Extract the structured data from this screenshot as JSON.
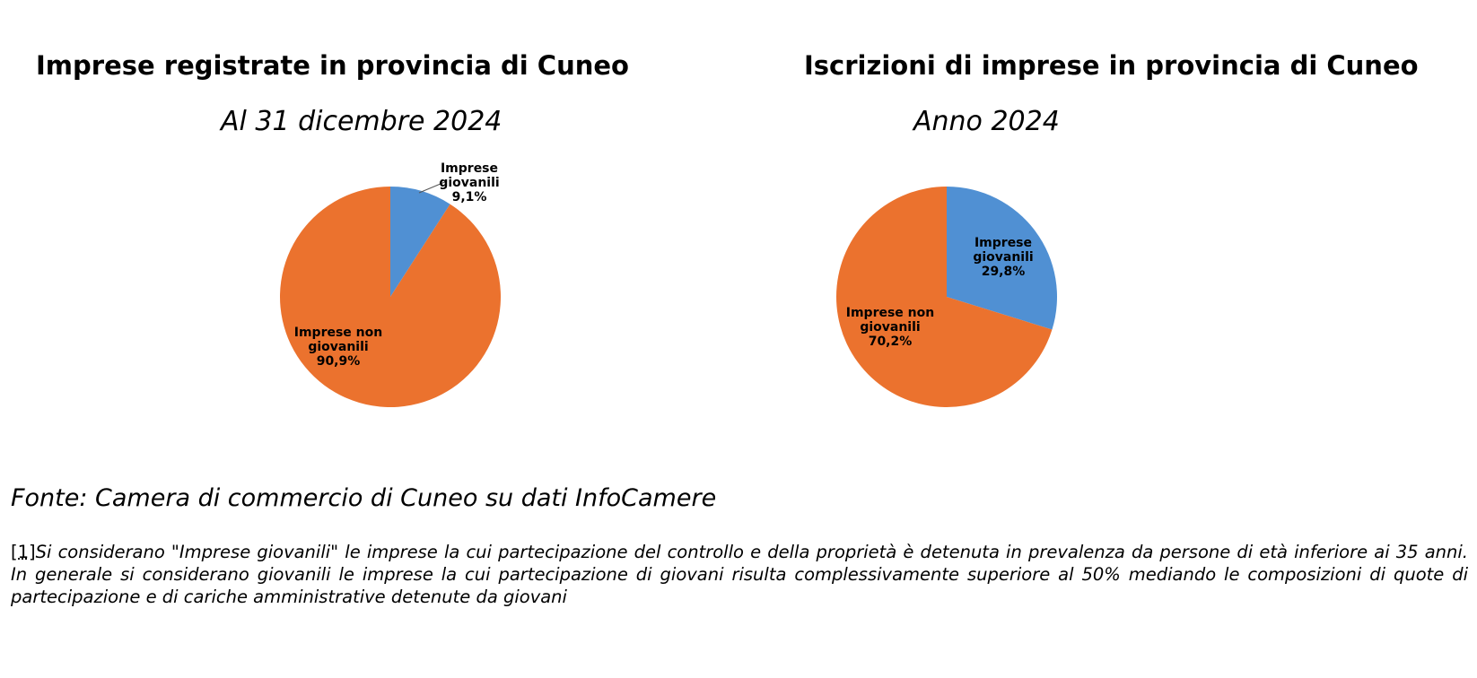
{
  "chart_data": [
    {
      "type": "pie",
      "title": "Imprese registrate in provincia di Cuneo",
      "subtitle": "Al 31 dicembre 2024",
      "slices": [
        {
          "label_lines": [
            "Imprese",
            "giovanili",
            "9,1%"
          ],
          "value": 9.1,
          "color": "#5090D3"
        },
        {
          "label_lines": [
            "Imprese non",
            "giovanili",
            "90,9%"
          ],
          "value": 90.9,
          "color": "#EB722E"
        }
      ]
    },
    {
      "type": "pie",
      "title": "Iscrizioni di imprese in provincia di Cuneo",
      "subtitle": "Anno 2024",
      "slices": [
        {
          "label_lines": [
            "Imprese",
            "giovanili",
            "29,8%"
          ],
          "value": 29.8,
          "color": "#5090D3"
        },
        {
          "label_lines": [
            "Imprese non",
            "giovanili",
            "70,2%"
          ],
          "value": 70.2,
          "color": "#EB722E"
        }
      ]
    }
  ],
  "source": "Fonte: Camera di commercio di Cuneo su dati InfoCamere",
  "footnote": {
    "ref": "[1]",
    "text": "Si considerano \"Imprese giovanili\" le imprese la cui partecipazione del controllo e della proprietà è detenuta in prevalenza da persone di età inferiore ai 35 anni. In generale si considerano giovanili le imprese la cui partecipazione di giovani risulta complessivamente superiore al 50% mediando le composizioni di quote di partecipazione e di cariche amministrative detenute da giovani"
  }
}
